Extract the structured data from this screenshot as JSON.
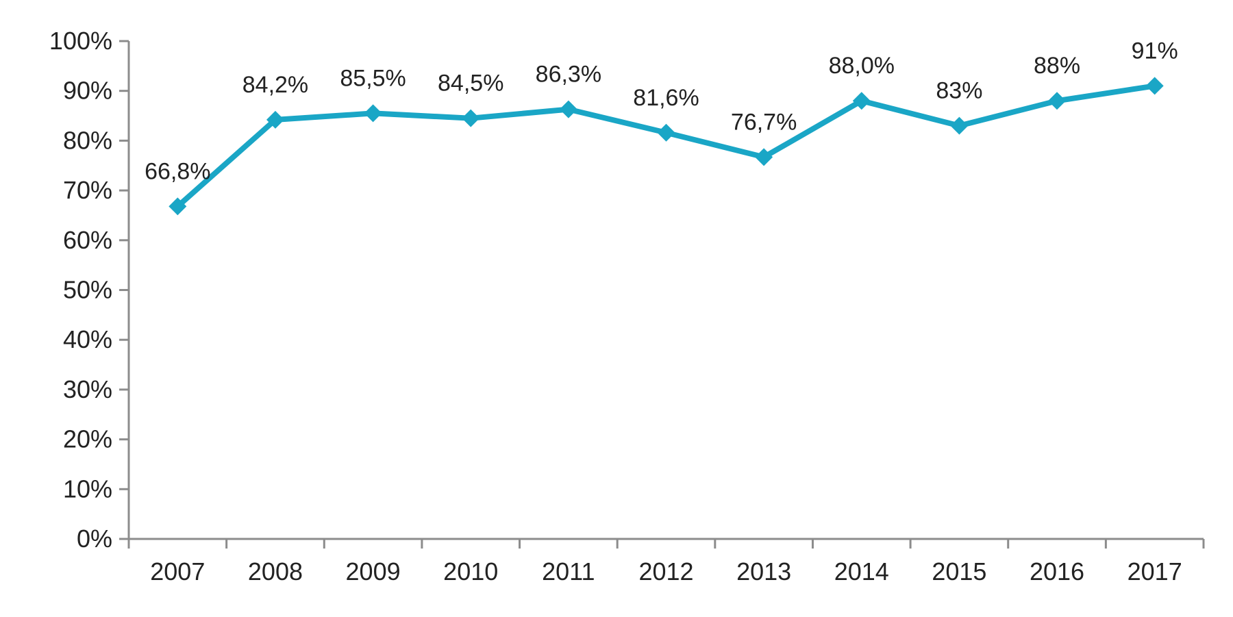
{
  "chart_data": {
    "type": "line",
    "title": "",
    "xlabel": "",
    "ylabel": "",
    "categories": [
      "2007",
      "2008",
      "2009",
      "2010",
      "2011",
      "2012",
      "2013",
      "2014",
      "2015",
      "2016",
      "2017"
    ],
    "series": [
      {
        "values": [
          66.8,
          84.2,
          85.5,
          84.5,
          86.3,
          81.6,
          76.7,
          88.0,
          83,
          88,
          91
        ],
        "data_labels": [
          "66,8%",
          "84,2%",
          "85,5%",
          "84,5%",
          "86,3%",
          "81,6%",
          "76,7%",
          "88,0%",
          "83%",
          "88%",
          "91%"
        ],
        "color": "#1aa6c6",
        "marker": "diamond"
      }
    ],
    "ylim": [
      0,
      100
    ],
    "y_ticks": [
      "0%",
      "10%",
      "20%",
      "30%",
      "40%",
      "50%",
      "60%",
      "70%",
      "80%",
      "90%",
      "100%"
    ],
    "grid": false,
    "legend": "none"
  }
}
